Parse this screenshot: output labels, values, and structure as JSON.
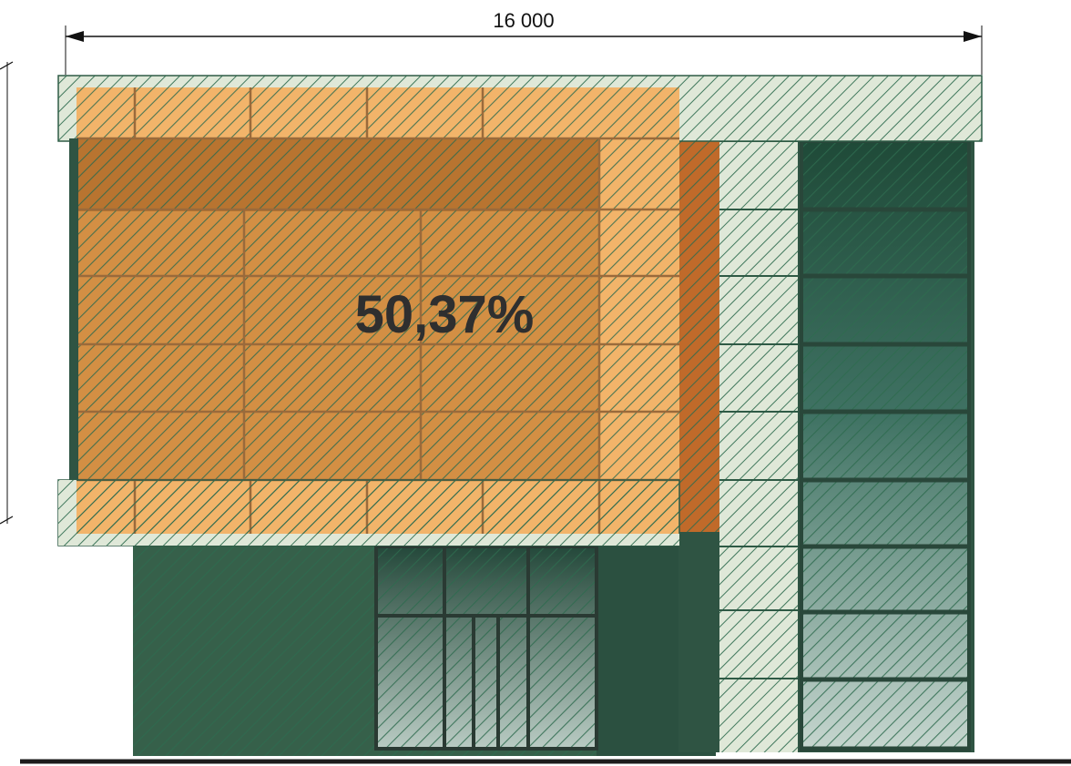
{
  "dimension": {
    "label": "16 000"
  },
  "annotation": {
    "percent_label": "50,37%"
  },
  "colors": {
    "hatch": "#2e6b4f",
    "facade_green": "#36604a",
    "orange_panel": "#f2b46a",
    "orange_dark": "#c97a2e",
    "cladding_light": "#dfe8d8",
    "glass_light": "#c9d7d0",
    "ground_line": "#1c1c1c"
  }
}
